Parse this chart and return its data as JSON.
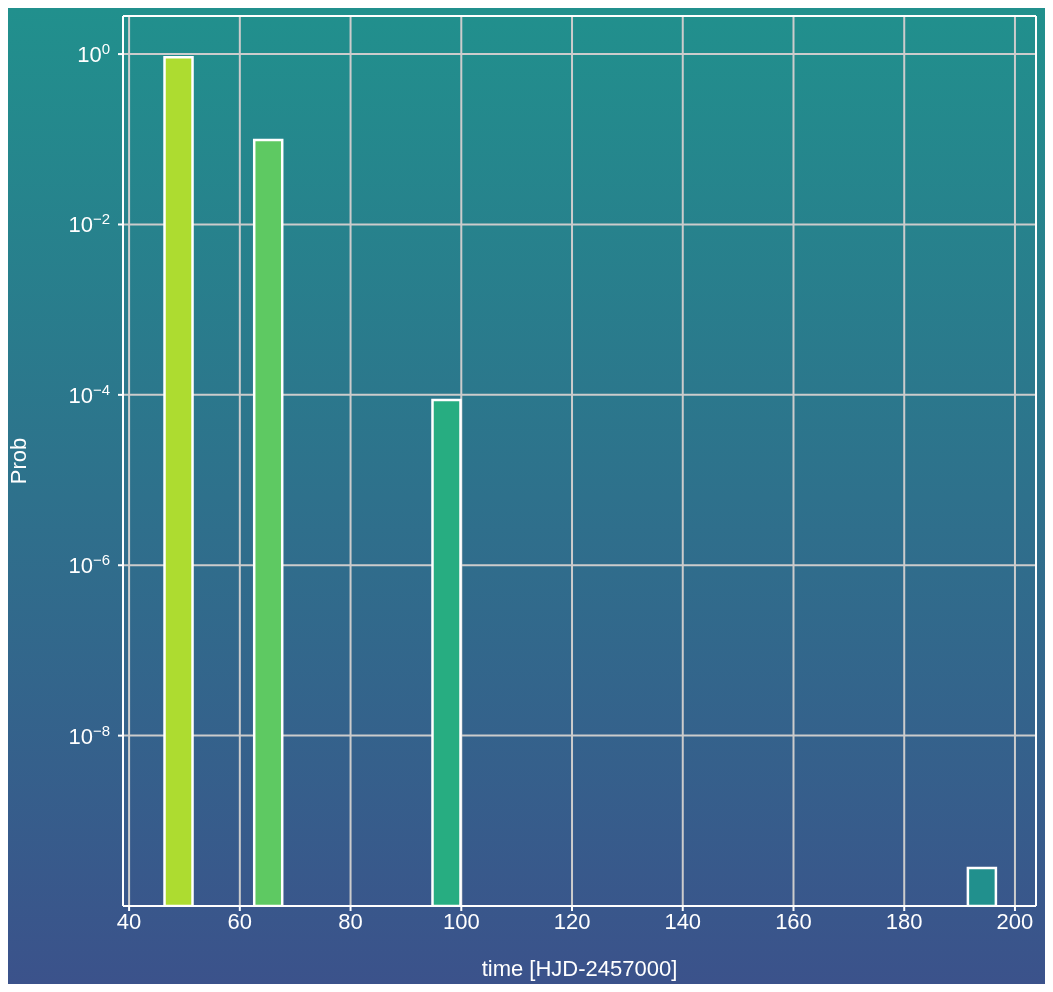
{
  "chart_data": {
    "type": "bar",
    "xlabel": "time [HJD-2457000]",
    "ylabel": "Prob",
    "x": [
      48.9,
      65.1,
      97.3,
      194.0
    ],
    "values": [
      0.92,
      0.098,
      8.7e-05,
      2.8e-10
    ],
    "colors": [
      "#addc30",
      "#5ec962",
      "#27ad81",
      "#21908d"
    ],
    "xlim": [
      38.9,
      203.8
    ],
    "xticks": [
      40,
      60,
      80,
      100,
      120,
      140,
      160,
      180,
      200
    ],
    "ylim": [
      1e-10,
      2.8
    ],
    "yticks": [
      {
        "value": 1,
        "label": "10$^{0}$"
      },
      {
        "value": 0.01,
        "label": "10$^{−2}$"
      },
      {
        "value": 0.0001,
        "label": "10$^{−4}$"
      },
      {
        "value": 1e-06,
        "label": "10$^{−6}$"
      },
      {
        "value": 1e-08,
        "label": "10$^{−8}$"
      }
    ],
    "log": "y",
    "grid": true
  }
}
